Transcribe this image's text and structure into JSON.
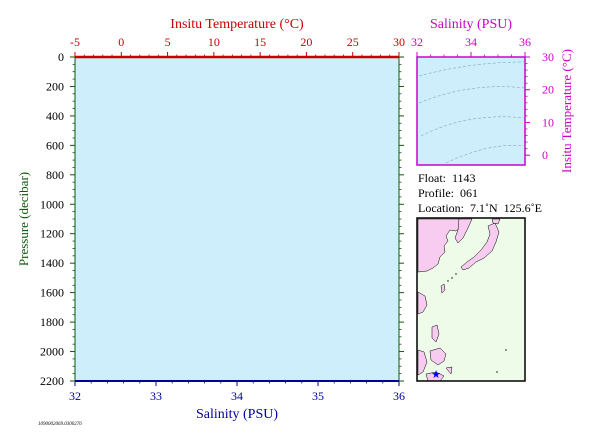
{
  "main_chart": {
    "top_axis_label": "Insitu Temperature (°C)",
    "bottom_axis_label": "Salinity (PSU)",
    "left_axis_label": "Pressure (decibar)",
    "top_ticks": [
      "-5",
      "0",
      "5",
      "10",
      "15",
      "20",
      "25",
      "30"
    ],
    "bottom_ticks": [
      "32",
      "33",
      "34",
      "35",
      "36"
    ],
    "left_ticks": [
      "0",
      "200",
      "400",
      "600",
      "800",
      "1000",
      "1200",
      "1400",
      "1600",
      "1800",
      "2000",
      "2200"
    ],
    "colors": {
      "plot_bg": "#cdeefa",
      "temp_axis": "#cc0000",
      "sal_axis": "#000099",
      "pressure_axis": "#0a5a0a"
    }
  },
  "ts_chart": {
    "top_axis_label": "Salinity (PSU)",
    "right_axis_label": "Insitu Temperature (°C)",
    "top_ticks": [
      "32",
      "34",
      "36"
    ],
    "right_ticks": [
      "30",
      "20",
      "10",
      "0"
    ],
    "color": "#cc00cc"
  },
  "info": {
    "float": "Float:  1143",
    "profile": "Profile:  061",
    "location": "Location:  7.1˚N  125.6˚E"
  },
  "map": {
    "colors": {
      "ocean": "#edfbe8",
      "land": "#f7ccf0",
      "marker": "#0000ff"
    }
  },
  "footer_code": "1090002069.0300276",
  "chart_data": [
    {
      "type": "line",
      "title": "",
      "xlabel": "Insitu Temperature (°C)",
      "x2label": "Salinity (PSU)",
      "ylabel": "Pressure (decibar)",
      "xlim": [
        -5,
        30
      ],
      "x2lim": [
        32,
        36
      ],
      "ylim": [
        2200,
        0
      ],
      "series": []
    },
    {
      "type": "line",
      "title": "",
      "xlabel": "Salinity (PSU)",
      "ylabel": "Insitu Temperature (°C)",
      "xlim": [
        32,
        36
      ],
      "ylim": [
        -3,
        30
      ],
      "series": []
    }
  ]
}
